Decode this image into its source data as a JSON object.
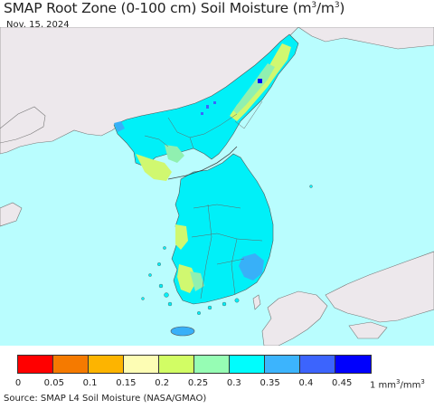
{
  "title": {
    "prefix": "SMAP Root Zone (0-100 cm) Soil Moisture (m",
    "sup1": "3",
    "middle": "/m",
    "sup2": "3",
    "suffix": ")"
  },
  "date": "Nov. 15, 2024",
  "legend": {
    "colors": [
      "#ff0000",
      "#f57a00",
      "#fdb400",
      "#fdfdb4",
      "#d2fd64",
      "#96fdb4",
      "#00fdfd",
      "#3cb4fd",
      "#3c64fd",
      "#0000fd"
    ],
    "ticks": [
      "0",
      "0.05",
      "0.1",
      "0.15",
      "0.2",
      "0.25",
      "0.3",
      "0.35",
      "0.4",
      "0.45"
    ],
    "unit_prefix": "1 mm",
    "unit_sup1": "3",
    "unit_middle": "/mm",
    "unit_sup2": "3"
  },
  "map_colors": {
    "water": "#b9fdfe",
    "foreign_land": "#ede8ec",
    "soil_main": "#00f0f8",
    "soil_wet": "#38b0f8",
    "soil_dry": "#d0f870",
    "soil_mid": "#90f0b0",
    "soil_wettest": "#0000fd",
    "border": "#555555"
  },
  "source": "Source: SMAP L4 Soil Moisture (NASA/GMAO)"
}
